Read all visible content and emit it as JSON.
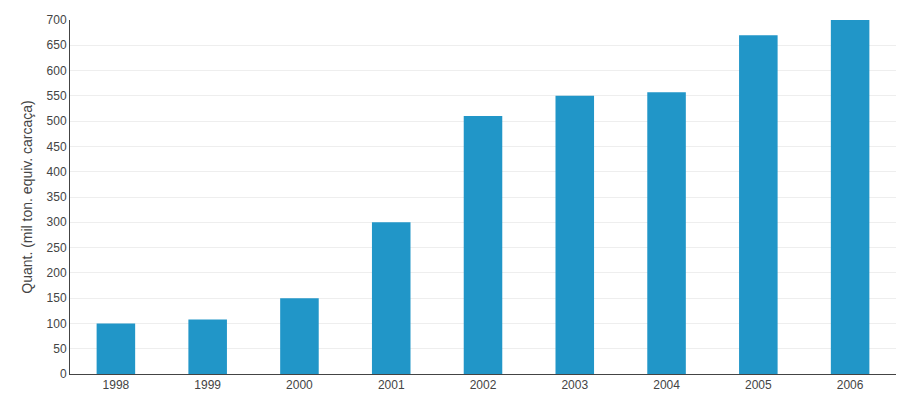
{
  "chart_data": {
    "type": "bar",
    "ylabel": "Quant. (mil ton. equiv. carcaça)",
    "categories": [
      "1998",
      "1999",
      "2000",
      "2001",
      "2002",
      "2003",
      "2004",
      "2005",
      "2006"
    ],
    "values": [
      100,
      108,
      150,
      300,
      510,
      550,
      557,
      670,
      700
    ],
    "color": "#2196C8",
    "ylim": [
      0,
      700
    ],
    "yticks": [
      0,
      50,
      100,
      150,
      200,
      250,
      300,
      350,
      400,
      450,
      500,
      550,
      600,
      650,
      700
    ],
    "grid": true
  }
}
